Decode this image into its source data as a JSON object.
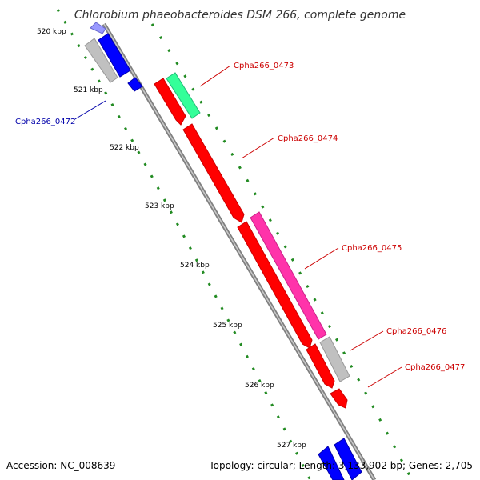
{
  "title": "Chlorobium phaeobacteroides DSM 266, complete genome",
  "footer": {
    "accession": "Accession: NC_008639",
    "topology": "Topology: circular; Length: 3,133,902 bp; Genes: 2,705"
  },
  "ticks": [
    "520 kbp",
    "521 kbp",
    "522 kbp",
    "523 kbp",
    "524 kbp",
    "525 kbp",
    "526 kbp",
    "527 kbp"
  ],
  "labels": [
    {
      "text": "Cpha266_0472",
      "color": "#0000aa"
    },
    {
      "text": "Cpha266_0473",
      "color": "#cc0000"
    },
    {
      "text": "Cpha266_0474",
      "color": "#cc0000"
    },
    {
      "text": "Cpha266_0475",
      "color": "#cc0000"
    },
    {
      "text": "Cpha266_0476",
      "color": "#cc0000"
    },
    {
      "text": "Cpha266_0477",
      "color": "#cc0000"
    }
  ],
  "colors": {
    "backbone": "#808080",
    "tick": "#228b22",
    "red_gene": "#ff0000",
    "green_gene": "#33ff99",
    "magenta_gene": "#ff33aa",
    "blue_gene": "#0000ff",
    "gray_gene": "#c0c0c0"
  }
}
